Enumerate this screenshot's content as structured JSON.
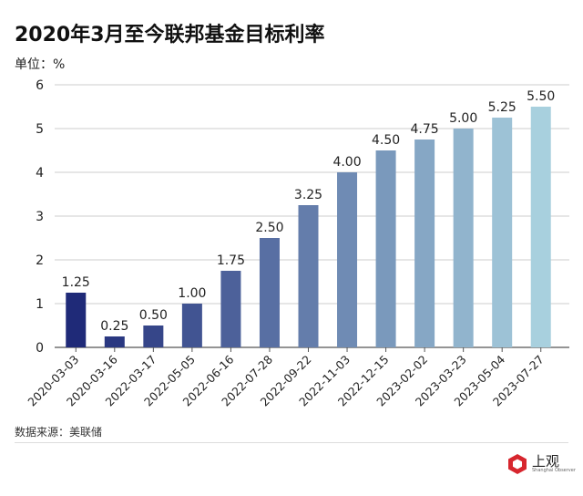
{
  "chart_data": {
    "type": "bar",
    "title": "2020年3月至今联邦基金目标利率",
    "ylabel": "单位：%",
    "categories": [
      "2020-03-03",
      "2020-03-16",
      "2022-03-17",
      "2022-05-05",
      "2022-06-16",
      "2022-07-28",
      "2022-09-22",
      "2022-11-03",
      "2022-12-15",
      "2023-02-02",
      "2023-03-23",
      "2023-05-04",
      "2023-07-27"
    ],
    "values": [
      1.25,
      0.25,
      0.5,
      1.0,
      1.75,
      2.5,
      3.25,
      4.0,
      4.5,
      4.75,
      5.0,
      5.25,
      5.5
    ],
    "data_labels": [
      "1.25",
      "0.25",
      "0.50",
      "1.00",
      "1.75",
      "2.50",
      "3.25",
      "4.00",
      "4.50",
      "4.75",
      "5.00",
      "5.25",
      "5.50"
    ],
    "ylim": [
      0,
      6
    ],
    "yticks": [
      0,
      1,
      2,
      3,
      4,
      5,
      6
    ],
    "grid": true,
    "colors": {
      "start": "#1f2a78",
      "end": "#a8d0de"
    }
  },
  "source": "数据来源：美联储",
  "logo": {
    "name": "上观",
    "subtitle": "Shanghai Observer",
    "color": "#d7262e"
  }
}
